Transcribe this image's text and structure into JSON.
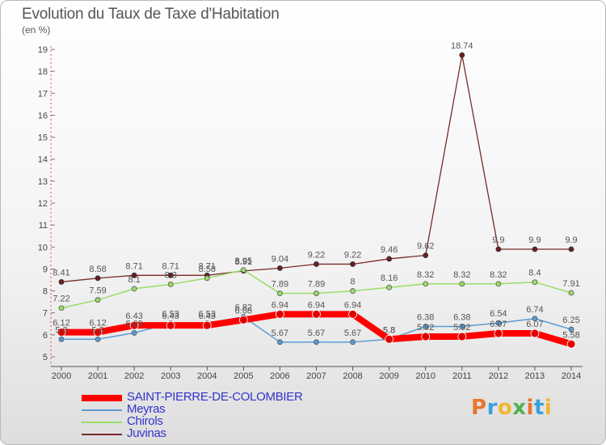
{
  "title": "Evolution du Taux de Taxe d'Habitation",
  "unit": "(en %)",
  "brand": "Proxiti",
  "chart_data": {
    "type": "line",
    "title": "Evolution du Taux de Taxe d'Habitation",
    "ylabel": "(en %)",
    "xlabel": "",
    "ylim": [
      5,
      19
    ],
    "yticks": [
      5,
      6,
      7,
      8,
      9,
      10,
      11,
      12,
      13,
      14,
      15,
      16,
      17,
      18,
      19
    ],
    "grid": false,
    "legend_position": "bottom-left",
    "x": [
      "2000",
      "2001",
      "2002",
      "2003",
      "2004",
      "2005",
      "2006",
      "2007",
      "2008",
      "2009",
      "2010",
      "2011",
      "2012",
      "2013",
      "2014"
    ],
    "series": [
      {
        "name": "SAINT-PIERRE-DE-COLOMBIER",
        "color": "#ff0000",
        "values": [
          6.12,
          6.12,
          6.43,
          6.43,
          6.43,
          6.68,
          6.94,
          6.94,
          6.94,
          5.8,
          5.92,
          5.92,
          6.07,
          6.07,
          5.58
        ]
      },
      {
        "name": "Meyras",
        "color": "#5b9bd5",
        "values": [
          5.8,
          5.8,
          6.09,
          6.53,
          6.53,
          6.82,
          5.67,
          5.67,
          5.67,
          5.8,
          6.38,
          6.38,
          6.54,
          6.74,
          6.25
        ]
      },
      {
        "name": "Chirols",
        "color": "#99dd66",
        "values": [
          7.22,
          7.59,
          8.1,
          8.3,
          8.58,
          8.95,
          7.89,
          7.89,
          8.0,
          8.16,
          8.32,
          8.32,
          8.32,
          8.4,
          7.91
        ]
      },
      {
        "name": "Juvinas",
        "color": "#7a2a2a",
        "values": [
          8.41,
          8.58,
          8.71,
          8.71,
          8.71,
          8.91,
          9.04,
          9.22,
          9.22,
          9.46,
          9.62,
          18.74,
          9.9,
          9.9,
          9.9
        ]
      }
    ]
  }
}
